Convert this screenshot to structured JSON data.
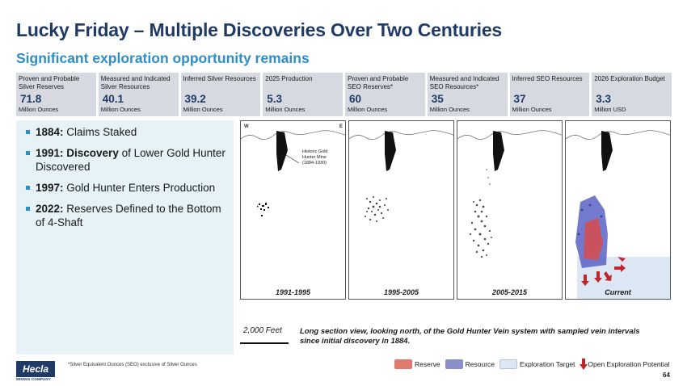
{
  "title": "Lucky Friday –  Multiple Discoveries Over Two Centuries",
  "subtitle": "Significant exploration opportunity remains",
  "stats": [
    {
      "label": "Proven and Probable Silver Reserves",
      "value": "71.8",
      "unit": "Million Ounces"
    },
    {
      "label": "Measured and Indicated Silver Resources",
      "value": "40.1",
      "unit": "Million Ounces"
    },
    {
      "label": "Inferred Silver Resources",
      "value": "39.2",
      "unit": "Million Ounces"
    },
    {
      "label": "2025 Production",
      "value": "5.3",
      "unit": "Million Ounces"
    },
    {
      "label": "Proven and Probable SEO Reserves*",
      "value": "60",
      "unit": "Million Ounces"
    },
    {
      "label": "Measured and Indicated SEO Resources*",
      "value": "35",
      "unit": "Million Ounces"
    },
    {
      "label": "Inferred SEO Resources",
      "value": "37",
      "unit": "Million Ounces"
    },
    {
      "label": "2026 Exploration Budget",
      "value": "3.3",
      "unit": "Million USD"
    }
  ],
  "bullets": [
    {
      "year": "1884:",
      "text": " Claims Staked"
    },
    {
      "year": "1991:",
      "bold": " Discovery",
      "text": " of Lower Gold Hunter Discovered"
    },
    {
      "year": "1997:",
      "text": " Gold Hunter Enters Production"
    },
    {
      "year": "2022:",
      "text": " Reserves Defined to the Bottom of 4-Shaft"
    }
  ],
  "figure": {
    "west": "W",
    "east": "E",
    "mine_label": [
      "Historic Gold",
      "Hunter Mine",
      "(1884-1930)"
    ],
    "panels": [
      "1991-1995",
      "1995-2005",
      "2005-2015",
      "Current"
    ]
  },
  "scale_text": "2,000 Feet",
  "caption": "Long section view, looking north, of the Gold Hunter Vein system with sampled vein intervals since initial discovery in 1884.",
  "footnote": "*Silver Equivalent Ounces (SEO) exclusive of Silver Ounces",
  "logo": {
    "name": "Hecla",
    "sub": "MINING COMPANY"
  },
  "legend": [
    {
      "label": "Reserve",
      "color": "#e07a6e"
    },
    {
      "label": "Resource",
      "color": "#8a8ec9"
    },
    {
      "label": "Exploration Target",
      "color": "#dde7f4"
    },
    {
      "label": "Open Exploration Potential",
      "color": "#c0272d"
    }
  ],
  "page_number": "64"
}
